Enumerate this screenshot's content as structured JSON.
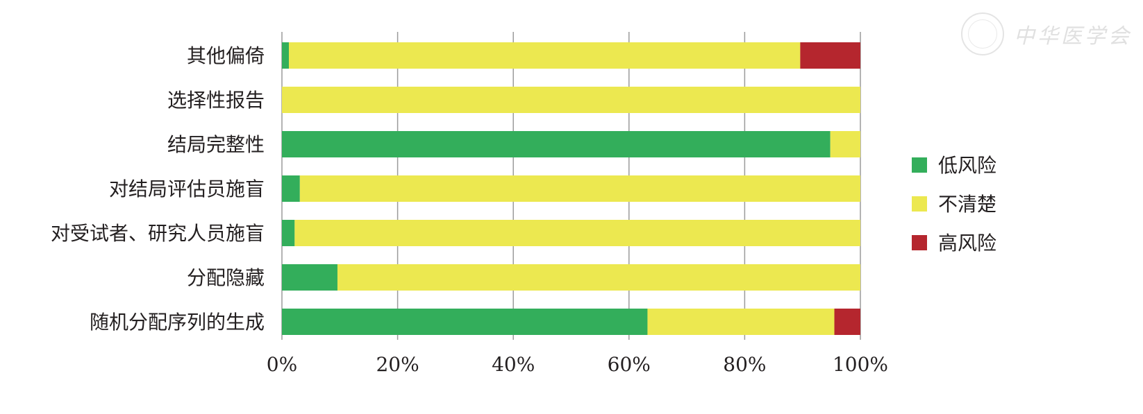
{
  "chart_data": {
    "type": "bar",
    "orientation": "horizontal",
    "stacked": true,
    "percent": true,
    "categories": [
      "其他偏倚",
      "选择性报告",
      "结局完整性",
      "对结局评估员施盲",
      "对受试者、研究人员施盲",
      "分配隐藏",
      "随机分配序列的生成"
    ],
    "series": [
      {
        "name": "低风险",
        "color": "#33ae5b",
        "values": [
          1.2,
          0,
          94.8,
          3.1,
          2.2,
          9.6,
          63.2
        ]
      },
      {
        "name": "不清楚",
        "color": "#ece850",
        "values": [
          88.4,
          100,
          5.2,
          96.9,
          97.8,
          90.4,
          32.3
        ]
      },
      {
        "name": "高风险",
        "color": "#b5262e",
        "values": [
          10.4,
          0,
          0,
          0,
          0,
          0,
          4.5
        ]
      }
    ],
    "xlim": [
      0,
      100
    ],
    "xticks": [
      "0%",
      "20%",
      "40%",
      "60%",
      "80%",
      "100%"
    ],
    "grid": true,
    "legend": "right"
  },
  "watermark": {
    "text": "中华医学会"
  }
}
